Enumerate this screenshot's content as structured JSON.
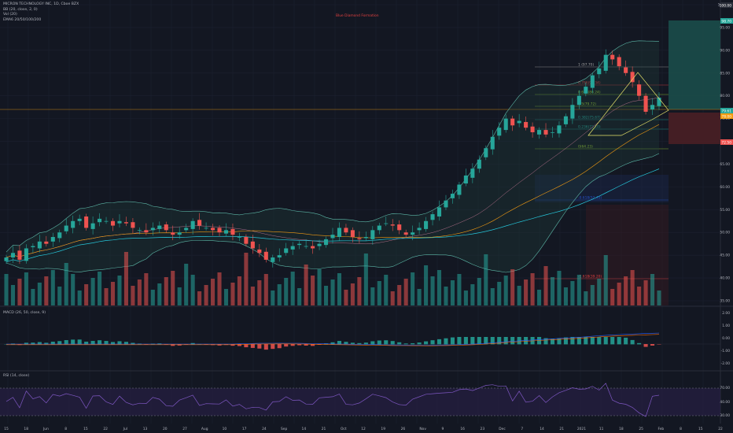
{
  "colors": {
    "background": "#131722",
    "up": "#26a69a",
    "down": "#ef5350",
    "grid": "#1c2030",
    "text": "#b2b5be",
    "bollinger": "#5db8a8",
    "ema_orange": "#f39c12",
    "ema_green": "#26c6da",
    "macd_line": "#2962ff",
    "signal_line": "#ff6d00",
    "rsi_line": "#7e57c2",
    "fib": "#e7e36a",
    "long_zone": "#1b4d4a",
    "stop_zone": "#4a1f25"
  },
  "legend": {
    "symbol": "MICRON TECHNOLOGY INC, 1D, Cboe BZX",
    "bb": "BB (20, close, 2, 0)",
    "vol": "Vol (20)",
    "ema": "EMA6 20/50/100/200"
  },
  "annotation": "Blue Diamond Formation",
  "macd_label": "MACD (26, 50, close, 9)",
  "rsi_label": "RSI (14, close)",
  "price_axis": [
    "100.00",
    "95.00",
    "90.00",
    "85.00",
    "80.00",
    "75.00",
    "70.00",
    "65.00",
    "60.00",
    "55.00",
    "50.00",
    "45.00",
    "40.00",
    "35.00"
  ],
  "price_tags": {
    "top": "100.00",
    "green": "98.70",
    "current": "79.61",
    "orange": "78.00",
    "red": "72.50"
  },
  "fib_labels": [
    "1 (97.70)",
    "0.786(91.34)",
    "0.618(86.24)",
    "0.5(79.72)",
    "0.382(75.67)",
    "0.236(72.10)",
    "0(64.23)",
    "-0.618(52.40)",
    "-1.618(39.20)"
  ],
  "macd_axis": [
    "2.00",
    "1.00",
    "0.00",
    "-1.00",
    "-2.00"
  ],
  "rsi_axis": [
    "70.00",
    "40.00",
    "30.00"
  ],
  "date_axis": [
    "15",
    "18",
    "Jun",
    "8",
    "15",
    "22",
    "Jul",
    "13",
    "20",
    "27",
    "Aug",
    "10",
    "17",
    "24",
    "Sep",
    "14",
    "21",
    "Oct",
    "12",
    "19",
    "26",
    "Nov",
    "9",
    "16",
    "23",
    "Dec",
    "7",
    "14",
    "21",
    "2021",
    "11",
    "18",
    "25",
    "Feb",
    "8",
    "15",
    "22"
  ],
  "chart_data": {
    "type": "candlestick",
    "title": "MICRON TECHNOLOGY INC, 1D, Cboe BZX",
    "ylim": [
      35,
      100
    ],
    "series": [
      {
        "name": "Price",
        "close": [
          44.5,
          45.5,
          44.0,
          46.5,
          47.0,
          48.0,
          47.5,
          49.0,
          50.0,
          51.5,
          52.5,
          53.0,
          51.0,
          52.0,
          53.0,
          52.5,
          51.5,
          52.5,
          52.0,
          51.0,
          50.5,
          50.0,
          51.0,
          51.5,
          50.5,
          49.5,
          50.0,
          51.0,
          52.5,
          51.5,
          51.0,
          50.5,
          50.0,
          50.5,
          49.5,
          49.0,
          47.5,
          46.5,
          45.5,
          44.0,
          44.5,
          45.0,
          46.5,
          47.0,
          47.5,
          47.0,
          46.5,
          47.5,
          48.5,
          49.5,
          51.0,
          50.0,
          49.0,
          48.5,
          49.0,
          50.5,
          51.5,
          52.0,
          51.5,
          50.5,
          49.5,
          50.0,
          51.0,
          52.5,
          54.0,
          55.5,
          57.0,
          58.5,
          60.5,
          62.5,
          64.0,
          66.0,
          68.5,
          71.0,
          73.0,
          75.0,
          73.5,
          74.5,
          73.0,
          72.0,
          72.5,
          71.5,
          72.0,
          73.5,
          75.5,
          78.0,
          80.0,
          82.0,
          84.5,
          86.0,
          89.0,
          88.0,
          86.5,
          85.0,
          83.0,
          80.0,
          76.5,
          78.0,
          79.6
        ]
      },
      {
        "name": "Vol (20)"
      },
      {
        "name": "MACD (26, 50, close, 9)"
      },
      {
        "name": "RSI (14, close)"
      }
    ],
    "legend": [
      "BB (20, close, 2, 0)",
      "Vol (20)",
      "EMA6 20/50/100/200"
    ]
  }
}
